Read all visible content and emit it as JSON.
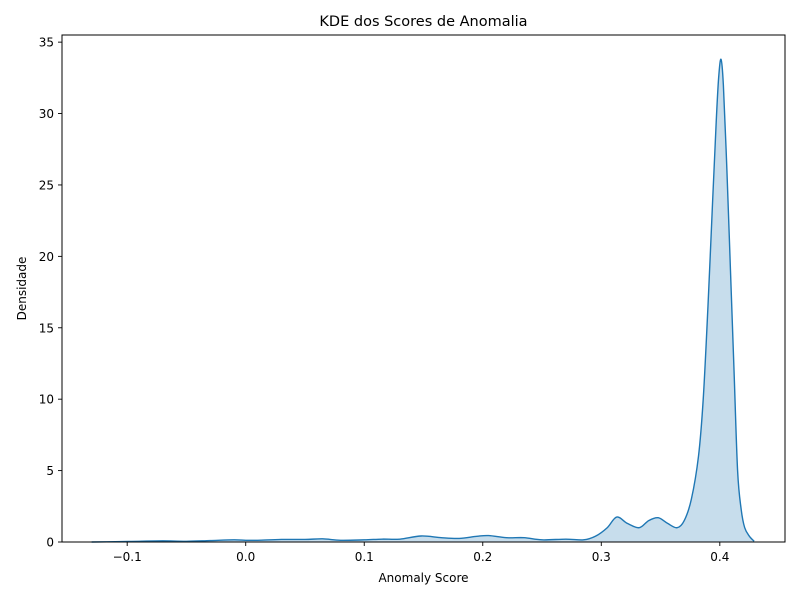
{
  "chart_data": {
    "type": "area",
    "title": "KDE dos Scores de Anomalia",
    "xlabel": "Anomaly Score",
    "ylabel": "Densidade",
    "xlim": [
      -0.155,
      0.455
    ],
    "ylim": [
      0,
      35.5
    ],
    "xticks": [
      -0.1,
      0.0,
      0.1,
      0.2,
      0.3,
      0.4
    ],
    "xtick_labels": [
      "−0.1",
      "0.0",
      "0.1",
      "0.2",
      "0.3",
      "0.4"
    ],
    "yticks": [
      0,
      5,
      10,
      15,
      20,
      25,
      30,
      35
    ],
    "ytick_labels": [
      "0",
      "5",
      "10",
      "15",
      "20",
      "25",
      "30",
      "35"
    ],
    "grid": false,
    "legend": "none",
    "line_color": "#1f77b4",
    "fill_color": "#1f77b4",
    "fill_opacity": 0.25,
    "series": [
      {
        "x": [
          -0.13,
          -0.11,
          -0.09,
          -0.07,
          -0.05,
          -0.03,
          -0.01,
          0.0,
          0.01,
          0.03,
          0.05,
          0.065,
          0.08,
          0.1,
          0.115,
          0.13,
          0.148,
          0.165,
          0.18,
          0.195,
          0.205,
          0.22,
          0.235,
          0.25,
          0.27,
          0.285,
          0.295,
          0.305,
          0.313,
          0.322,
          0.332,
          0.34,
          0.348,
          0.356,
          0.364,
          0.37,
          0.376,
          0.382,
          0.386,
          0.39,
          0.394,
          0.397,
          0.399,
          0.401,
          0.403,
          0.406,
          0.409,
          0.412,
          0.415,
          0.418,
          0.421,
          0.425,
          0.429
        ],
        "y": [
          0.0,
          0.02,
          0.05,
          0.08,
          0.05,
          0.1,
          0.15,
          0.12,
          0.12,
          0.18,
          0.18,
          0.22,
          0.12,
          0.15,
          0.2,
          0.2,
          0.42,
          0.3,
          0.25,
          0.4,
          0.45,
          0.3,
          0.3,
          0.15,
          0.2,
          0.15,
          0.4,
          1.0,
          1.75,
          1.3,
          1.0,
          1.5,
          1.7,
          1.3,
          1.0,
          1.5,
          3.0,
          6.0,
          10.0,
          16.5,
          24.0,
          29.5,
          32.5,
          33.8,
          32.0,
          26.0,
          19.0,
          12.0,
          5.0,
          2.3,
          1.0,
          0.4,
          0.05
        ]
      }
    ]
  }
}
